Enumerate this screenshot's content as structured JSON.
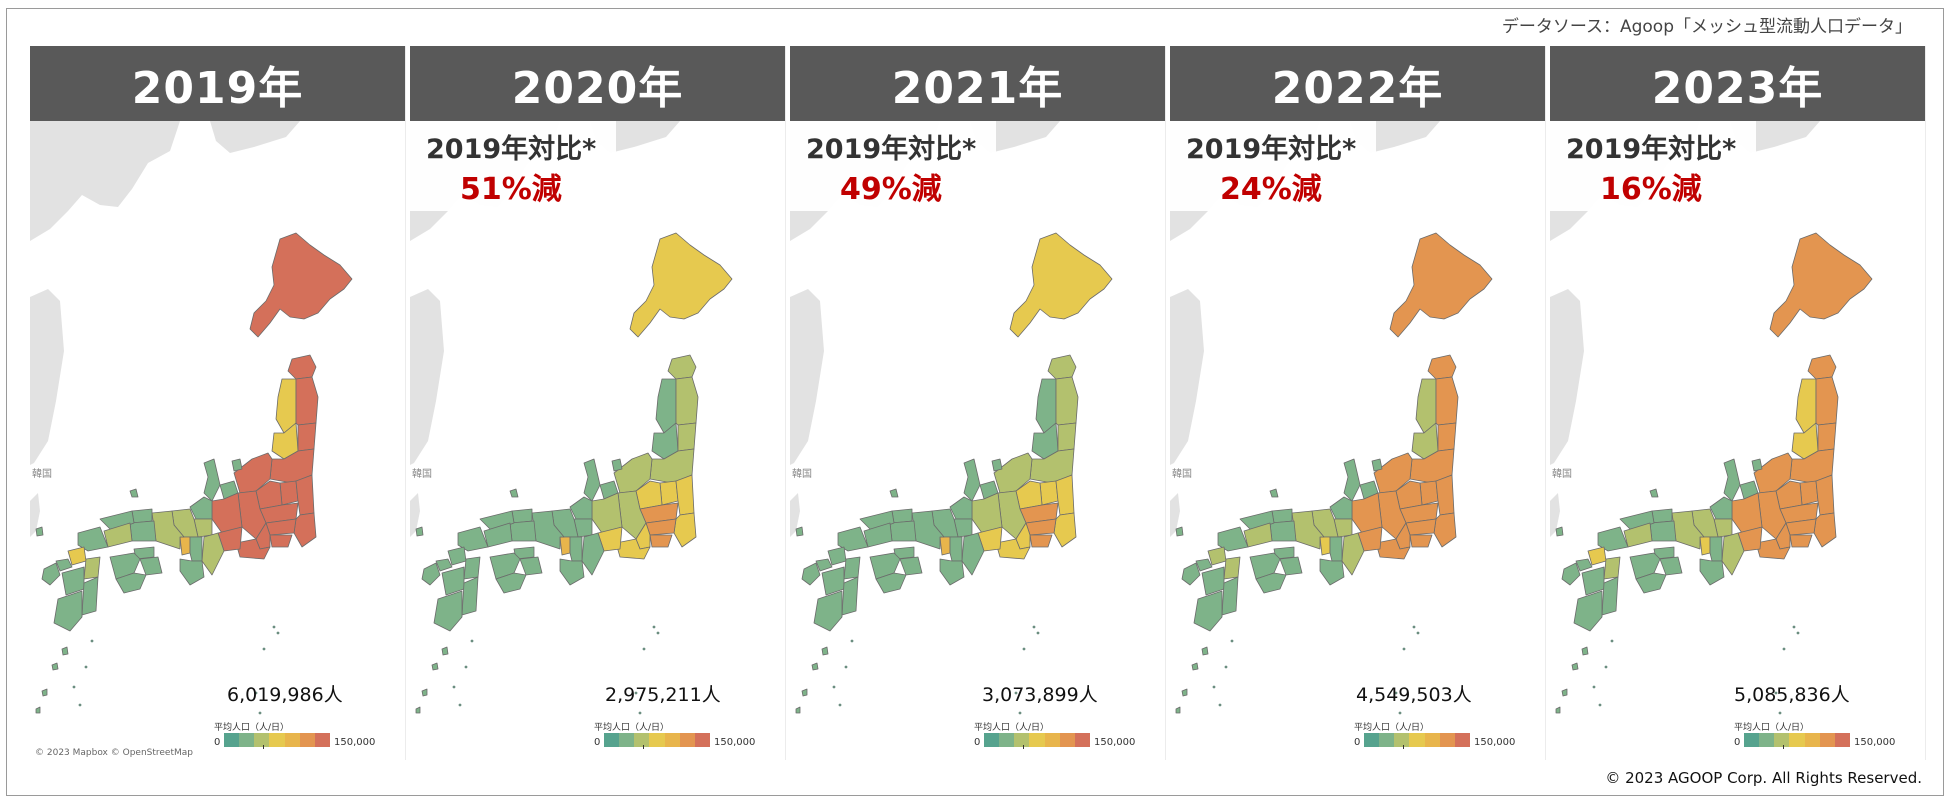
{
  "source_note": "データソース：Agoop「メッシュ型流動人口データ」",
  "copyright": "© 2023 AGOOP Corp. All Rights Reserved.",
  "map_attribution": "© 2023 Mapbox © OpenStreetMap",
  "korea_label": "韓国",
  "legend": {
    "title": "平均人口（人/日）",
    "min_label": "0",
    "max_label": "150,000",
    "colors": [
      "#56a38e",
      "#7eb389",
      "#b3c16e",
      "#e6c94f",
      "#e8b54c",
      "#e39550",
      "#d4705a"
    ]
  },
  "comparison_label": "2019年対比*",
  "panels": [
    {
      "year": "2019年",
      "total": "6,019,986人",
      "change": "",
      "shade": 1.0
    },
    {
      "year": "2020年",
      "total": "2,975,211人",
      "change": "51%減",
      "shade": 0.33
    },
    {
      "year": "2021年",
      "total": "3,073,899人",
      "change": "49%減",
      "shade": 0.36
    },
    {
      "year": "2022年",
      "total": "4,549,503人",
      "change": "24%減",
      "shade": 0.76
    },
    {
      "year": "2023年",
      "total": "5,085,836人",
      "change": "16%減",
      "shade": 0.86
    }
  ]
}
